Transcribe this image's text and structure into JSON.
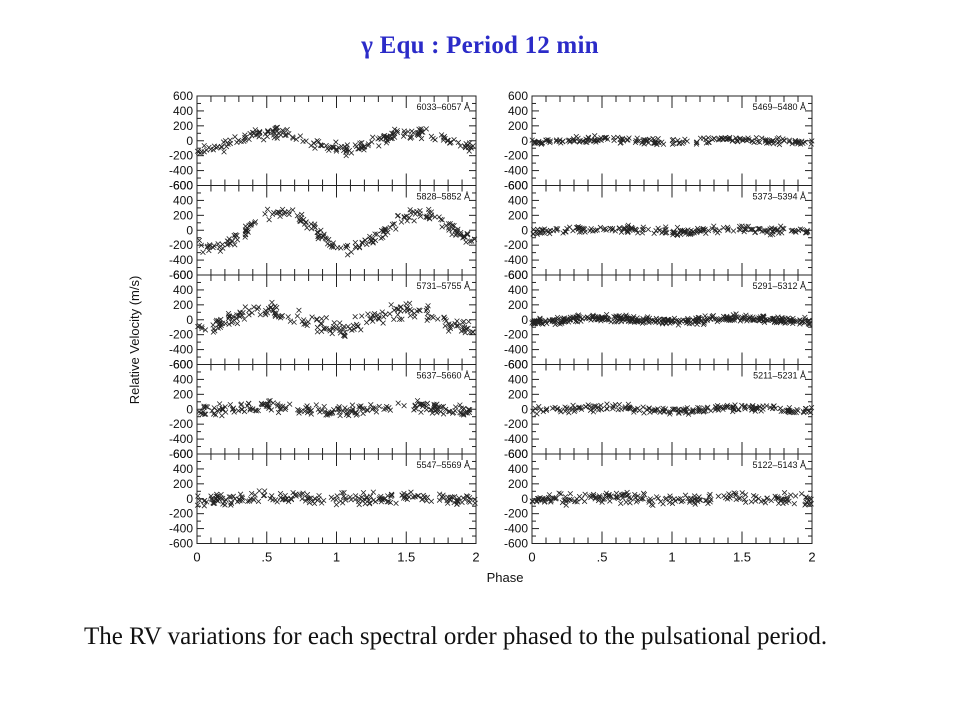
{
  "slide": {
    "title": "γ Equ : Period 12 min",
    "caption": "The RV variations for each spectral order phased to the pulsational period."
  },
  "colors": {
    "title": "#2b2bc8",
    "text": "#111111",
    "points": "#222222"
  },
  "chart_data": {
    "type": "scatter",
    "xlabel": "Phase",
    "ylabel": "Relative Velocity (m/s)",
    "xlim": [
      0,
      2
    ],
    "ylim": [
      -600,
      600
    ],
    "x_ticks": [
      0,
      0.5,
      1,
      1.5,
      2
    ],
    "x_tick_labels": [
      "0",
      ".5",
      "1",
      "1.5",
      "2"
    ],
    "y_ticks": [
      600,
      400,
      200,
      0,
      -200,
      -400,
      -600
    ],
    "y_tick_labels": [
      "600",
      "400",
      "200",
      "0",
      "-200",
      "-400",
      "-600"
    ],
    "grid": false,
    "panels": [
      {
        "label": "6033–6057 Å",
        "column": "left",
        "row": 0,
        "amplitude": 110,
        "phase_peak": 0.55,
        "scatter": 55
      },
      {
        "label": "5828–5852 Å",
        "column": "left",
        "row": 1,
        "amplitude": 230,
        "phase_peak": 0.6,
        "scatter": 60
      },
      {
        "label": "5731–5755 Å",
        "column": "left",
        "row": 2,
        "amplitude": 120,
        "phase_peak": 0.5,
        "scatter": 80
      },
      {
        "label": "5637–5660 Å",
        "column": "left",
        "row": 3,
        "amplitude": 30,
        "phase_peak": 0.5,
        "scatter": 60
      },
      {
        "label": "5547–5569 Å",
        "column": "left",
        "row": 4,
        "amplitude": 20,
        "phase_peak": 0.5,
        "scatter": 60
      },
      {
        "label": "5469–5480 Å",
        "column": "right",
        "row": 0,
        "amplitude": 20,
        "phase_peak": 0.5,
        "scatter": 35
      },
      {
        "label": "5373–5394 Å",
        "column": "right",
        "row": 1,
        "amplitude": 20,
        "phase_peak": 0.5,
        "scatter": 40
      },
      {
        "label": "5291–5312 Å",
        "column": "right",
        "row": 2,
        "amplitude": 25,
        "phase_peak": 0.5,
        "scatter": 35
      },
      {
        "label": "5211–5231 Å",
        "column": "right",
        "row": 3,
        "amplitude": 20,
        "phase_peak": 0.5,
        "scatter": 35
      },
      {
        "label": "5122–5143 Å",
        "column": "right",
        "row": 4,
        "amplitude": 20,
        "phase_peak": 0.5,
        "scatter": 55
      }
    ]
  }
}
